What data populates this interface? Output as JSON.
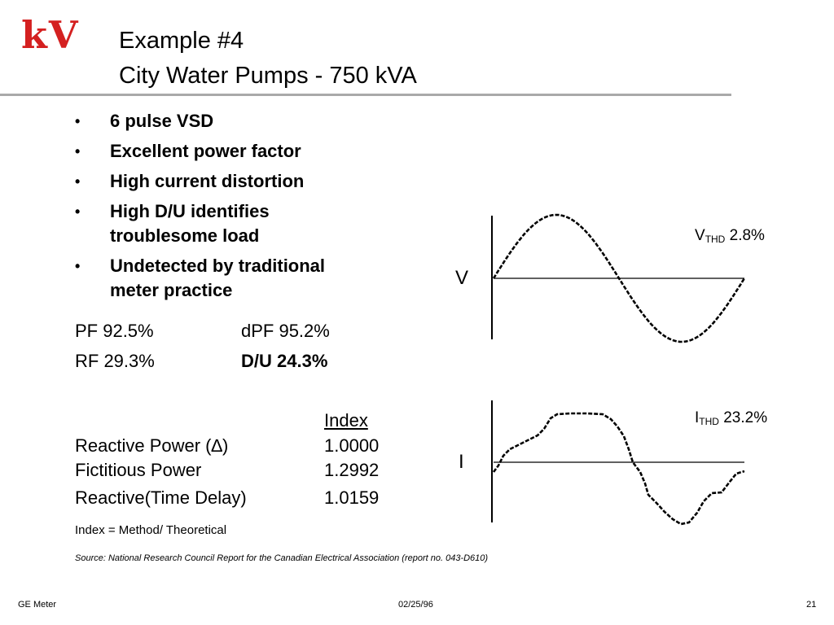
{
  "logo": "kV",
  "title": {
    "line1": "Example #4",
    "line2": "City Water Pumps - 750 kVA"
  },
  "bullets": [
    {
      "symbol": "•",
      "lines": [
        "6 pulse VSD"
      ]
    },
    {
      "symbol": "•",
      "lines": [
        "Excellent power factor"
      ]
    },
    {
      "symbol": "•",
      "lines": [
        "High current distortion"
      ]
    },
    {
      "symbol": "•",
      "lines": [
        "High D/U identifies",
        "troublesome load"
      ]
    },
    {
      "symbol": "•",
      "lines": [
        "Undetected by traditional",
        "meter practice"
      ]
    }
  ],
  "metrics": {
    "pf": "PF 92.5%",
    "dpf": "dPF 95.2%",
    "rf": "RF 29.3%",
    "du": "D/U 24.3%"
  },
  "index_table": {
    "header": "Index",
    "rows": [
      {
        "label": "Reactive Power (∆)",
        "value": "1.0000"
      },
      {
        "label": "Fictitious Power",
        "value": "1.2992"
      },
      {
        "label": "Reactive(Time Delay)",
        "value": "1.0159"
      }
    ],
    "note": "Index = Method/ Theoretical"
  },
  "source": "Source: National Research Council Report for the Canadian Electrical Association (report no. 043-D610)",
  "waveforms": {
    "voltage": {
      "axis_label": "V",
      "thd_symbol": "V",
      "thd_sub": "THD",
      "thd_value": "2.8%"
    },
    "current": {
      "axis_label": "I",
      "thd_symbol": "I",
      "thd_sub": "THD",
      "thd_value": "23.2%"
    }
  },
  "footer": {
    "left": "GE Meter",
    "center": "02/25/96",
    "right": "21"
  }
}
